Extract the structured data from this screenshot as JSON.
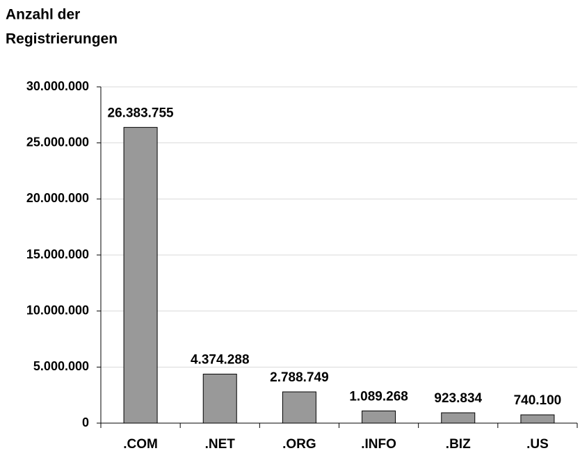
{
  "chart_data": {
    "type": "bar",
    "title": [
      "Anzahl der",
      "Registrierungen"
    ],
    "categories": [
      ".COM",
      ".NET",
      ".ORG",
      ".INFO",
      ".BIZ",
      ".US"
    ],
    "values": [
      26383755,
      4374288,
      2788749,
      1089268,
      923834,
      740100
    ],
    "value_labels": [
      "26.383.755",
      "4.374.288",
      "2.788.749",
      "1.089.268",
      "923.834",
      "740.100"
    ],
    "color": "#999999",
    "ylim": [
      0,
      30000000
    ],
    "yticks": [
      0,
      {
        "value": 5000000,
        "label": "5.000.000"
      },
      {
        "value": 10000000,
        "label": "10.000.000"
      },
      {
        "value": 15000000,
        "label": "15.000.000"
      },
      {
        "value": 20000000,
        "label": "20.000.000"
      },
      {
        "value": 25000000,
        "label": "25.000.000"
      },
      {
        "value": 30000000,
        "label": "30.000.000"
      }
    ],
    "grid": true
  }
}
